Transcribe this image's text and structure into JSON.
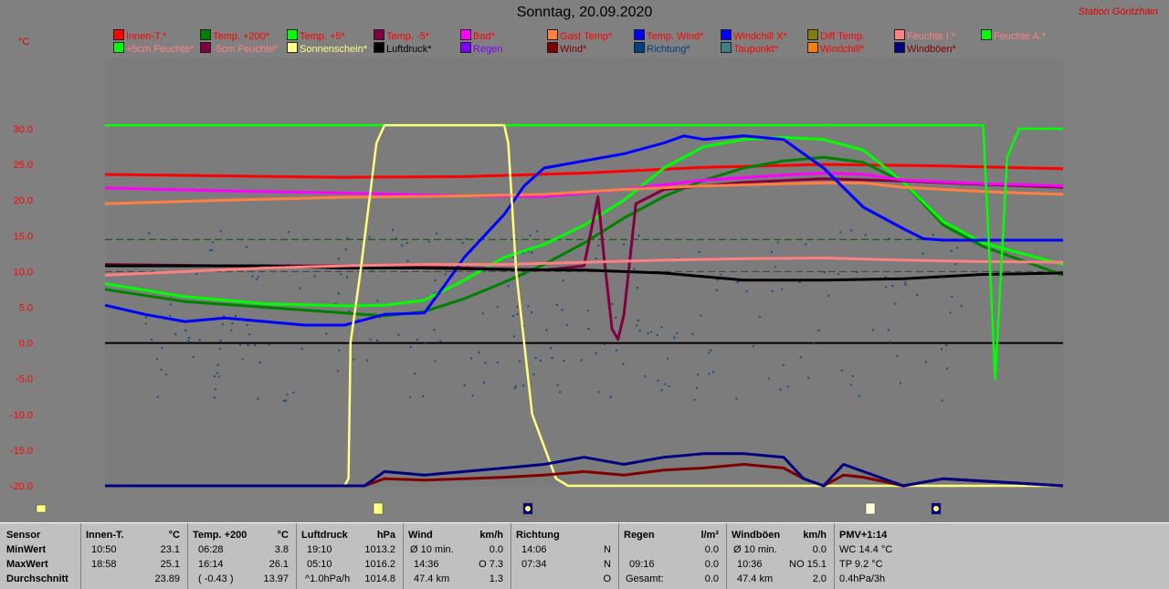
{
  "title": "Sonntag, 20.09.2020",
  "station": "Station Göritzhain",
  "unit": "°C",
  "legend": [
    {
      "label": "Innen-T.*",
      "color": "#ff0000",
      "text": "#ff0000"
    },
    {
      "label": "Temp. +200*",
      "color": "#008000",
      "text": "#ff0000"
    },
    {
      "label": "Temp. +5*",
      "color": "#00ff00",
      "text": "#ff0000"
    },
    {
      "label": "Temp. -5*",
      "color": "#800040",
      "text": "#ff0000"
    },
    {
      "label": "Bad*",
      "color": "#ff00ff",
      "text": "#ff0000"
    },
    {
      "label": "Gast Temp*",
      "color": "#ff8040",
      "text": "#ff0000"
    },
    {
      "label": "Temp. Wind*",
      "color": "#0000ff",
      "text": "#ff0000"
    },
    {
      "label": "Windchill X*",
      "color": "#0000ff",
      "text": "#ff0000"
    },
    {
      "label": "Diff Temp.",
      "color": "#808000",
      "text": "#ff0000"
    },
    {
      "label": "Feuchte I.*",
      "color": "#ff8080",
      "text": "#ff8080"
    },
    {
      "label": "Feuchte A.*",
      "color": "#00ff00",
      "text": "#ff8080"
    },
    {
      "label": "+5cm Feuchte*",
      "color": "#00ff00",
      "text": "#ff8080"
    },
    {
      "label": "-5cm Feuchte*",
      "color": "#800040",
      "text": "#ff8080"
    },
    {
      "label": "Sonnenschein*",
      "color": "#ffff80",
      "text": "#ffff80"
    },
    {
      "label": "Luftdruck*",
      "color": "#000000",
      "text": "#000000"
    },
    {
      "label": "Regen",
      "color": "#8000ff",
      "text": "#8000ff"
    },
    {
      "label": "Wind*",
      "color": "#800000",
      "text": "#800000"
    },
    {
      "label": "Richtung*",
      "color": "#004080",
      "text": "#004080"
    },
    {
      "label": "Taupunkt*",
      "color": "#408080",
      "text": "#ff0000"
    },
    {
      "label": "Windchill*",
      "color": "#ff8000",
      "text": "#ff0000"
    },
    {
      "label": "Windböen*",
      "color": "#000080",
      "text": "#800000"
    }
  ],
  "chart_data": {
    "type": "line",
    "title": "Sonntag, 20.09.2020",
    "ylabel": "°C",
    "xlim": [
      0,
      24
    ],
    "ylim": [
      -20,
      30
    ],
    "yticks": [
      "30.0",
      "25.0",
      "20.0",
      "15.0",
      "10.0",
      "5.0",
      "0.0",
      "-5.0",
      "-10.0",
      "-15.0",
      "-20.0"
    ],
    "reference_lines": [
      14.5,
      10.0,
      0.0
    ],
    "series": [
      {
        "name": "Innen-T.*",
        "color": "#ff0000",
        "x": [
          0,
          3,
          6,
          9,
          12,
          15,
          18,
          21,
          24
        ],
        "y": [
          23.6,
          23.4,
          23.2,
          23.3,
          23.8,
          24.6,
          25.0,
          24.8,
          24.4
        ]
      },
      {
        "name": "Temp. +200*",
        "color": "#008000",
        "x": [
          0,
          2,
          4,
          6,
          7,
          8,
          9,
          10,
          11,
          12,
          13,
          14,
          15,
          16,
          17,
          18,
          19,
          20,
          21,
          22,
          23,
          24
        ],
        "y": [
          7.5,
          5.8,
          5.0,
          4.2,
          3.8,
          4.4,
          6.2,
          8.5,
          11.0,
          14.0,
          17.5,
          20.5,
          22.8,
          24.5,
          25.5,
          26.0,
          25.3,
          22.5,
          16.5,
          13.5,
          11.5,
          9.5
        ]
      },
      {
        "name": "Temp. +5*",
        "color": "#00ff00",
        "x": [
          0,
          2,
          4,
          6,
          7,
          8,
          9,
          10,
          11,
          12,
          13,
          14,
          15,
          16,
          17,
          18,
          19,
          20,
          21,
          22,
          23,
          24
        ],
        "y": [
          8.3,
          6.5,
          5.5,
          5.2,
          5.3,
          6.0,
          8.8,
          12.0,
          13.8,
          16.5,
          20.0,
          24.5,
          27.5,
          28.5,
          28.8,
          28.5,
          27.0,
          22.5,
          17.0,
          14.0,
          12.5,
          11.0
        ]
      },
      {
        "name": "Temp. -5*",
        "color": "#800040",
        "x": [
          0,
          3,
          6,
          9,
          11,
          12,
          12.35,
          12.5,
          12.7,
          12.85,
          13,
          13.3,
          14,
          16,
          18,
          20,
          22,
          24
        ],
        "y": [
          11.0,
          10.8,
          10.8,
          10.5,
          10.2,
          10.8,
          20.5,
          12.0,
          2.0,
          0.5,
          4.0,
          19.5,
          21.5,
          22.5,
          23.0,
          22.7,
          22.2,
          21.8
        ]
      },
      {
        "name": "Bad*",
        "color": "#ff00ff",
        "x": [
          0,
          3,
          6,
          9,
          11,
          13,
          15,
          17,
          18,
          19,
          20,
          22,
          24
        ],
        "y": [
          21.7,
          21.3,
          21.0,
          20.6,
          20.5,
          21.5,
          22.8,
          23.5,
          23.8,
          23.6,
          22.8,
          22.3,
          22.0
        ]
      },
      {
        "name": "Gast Temp*",
        "color": "#ff8040",
        "x": [
          0,
          3,
          6,
          9,
          11,
          13,
          15,
          17,
          18,
          19,
          20,
          22,
          24
        ],
        "y": [
          19.5,
          20.0,
          20.4,
          20.6,
          20.8,
          21.5,
          22.0,
          22.3,
          22.4,
          22.4,
          21.8,
          21.2,
          20.8
        ]
      },
      {
        "name": "Temp. Wind*",
        "color": "#0000ff",
        "x": [
          0,
          1,
          2,
          3,
          4,
          5,
          6,
          7,
          8,
          8.5,
          9,
          10,
          10.5,
          11,
          11.5,
          12,
          13,
          14,
          14.5,
          15,
          16,
          17,
          18,
          19,
          20,
          20.5,
          21,
          22,
          23,
          24
        ],
        "y": [
          5.3,
          4.0,
          3.0,
          3.5,
          3.0,
          2.5,
          2.5,
          4.0,
          4.2,
          8.0,
          12.0,
          18.0,
          22.0,
          24.5,
          25.0,
          25.5,
          26.5,
          28.0,
          29.0,
          28.5,
          29.0,
          28.5,
          24.5,
          19.0,
          16.0,
          14.6,
          14.4,
          14.4,
          14.4,
          14.4
        ]
      },
      {
        "name": "Luftdruck*",
        "color": "#000000",
        "x": [
          0,
          2,
          4,
          6,
          8,
          10,
          12,
          14,
          16,
          18,
          20,
          22,
          24
        ],
        "y": [
          10.8,
          10.8,
          10.8,
          10.5,
          10.5,
          10.3,
          10.2,
          9.8,
          8.8,
          8.8,
          9.0,
          9.6,
          9.8
        ]
      },
      {
        "name": "Feuchte I.*",
        "color": "#ff8080",
        "x": [
          0,
          2,
          4,
          6,
          8,
          10,
          12,
          14,
          16,
          18,
          20,
          22,
          24
        ],
        "y": [
          9.5,
          10.0,
          10.5,
          10.8,
          11.0,
          11.0,
          11.3,
          11.6,
          11.8,
          11.9,
          11.6,
          11.4,
          11.3
        ]
      },
      {
        "name": "Feuchte A.*",
        "color": "#00ff00",
        "x": [
          0,
          15,
          20,
          21.8,
          22,
          22.3,
          22.6,
          22.9,
          24
        ],
        "y": [
          30.5,
          30.5,
          30.5,
          30.5,
          30.5,
          -5.0,
          26.0,
          30.0,
          30.0
        ]
      },
      {
        "name": "Sonnenschein*",
        "color": "#ffff80",
        "x": [
          0,
          6.0,
          6.1,
          6.15,
          6.4,
          6.8,
          7.0,
          10.0,
          10.1,
          10.3,
          10.7,
          11.3,
          11.6,
          24
        ],
        "y": [
          -20,
          -20,
          -19,
          0,
          10,
          28,
          30.5,
          30.5,
          28,
          10,
          -10,
          -19,
          -20,
          -20
        ]
      },
      {
        "name": "Wind*",
        "color": "#800000",
        "x": [
          0,
          6.5,
          7,
          8,
          9,
          10,
          11,
          12,
          13,
          14,
          15,
          16,
          17,
          17.5,
          18,
          18.5,
          19,
          20,
          21,
          24
        ],
        "y": [
          -20,
          -20,
          -19.0,
          -19.2,
          -19.0,
          -18.8,
          -18.5,
          -18.0,
          -18.5,
          -17.8,
          -17.5,
          -17.0,
          -17.5,
          -19.0,
          -20,
          -18.5,
          -18.8,
          -20,
          -19,
          -20
        ]
      },
      {
        "name": "Windböen*",
        "color": "#000080",
        "x": [
          0,
          6.5,
          7,
          8,
          9,
          10,
          11,
          12,
          13,
          14,
          15,
          16,
          17,
          17.5,
          18,
          18.5,
          19,
          20,
          21,
          24
        ],
        "y": [
          -20,
          -20,
          -18.0,
          -18.5,
          -18.0,
          -17.5,
          -17.0,
          -16.0,
          -17.0,
          -16.0,
          -15.5,
          -15.5,
          -16.0,
          -19.0,
          -20,
          -17.0,
          -18.0,
          -20,
          -19,
          -20
        ]
      }
    ]
  },
  "stats": {
    "col1": {
      "header": "Sensor",
      "rows": [
        "MinWert",
        "MaxWert",
        "Durchschnitt"
      ]
    },
    "col2": {
      "header": "Innen-T.",
      "unit": "°C",
      "rows": [
        [
          "10:50",
          "23.1"
        ],
        [
          "18:58",
          "25.1"
        ],
        [
          "",
          "23.89"
        ]
      ]
    },
    "col3": {
      "header": "Temp. +200",
      "unit": "°C",
      "rows": [
        [
          "06:28",
          "3.8"
        ],
        [
          "16:14",
          "26.1"
        ],
        [
          "( -0.43 )",
          "13.97"
        ]
      ]
    },
    "col4": {
      "header": "Luftdruck",
      "unit": "hPa",
      "rows": [
        [
          "19:10",
          "1013.2"
        ],
        [
          "05:10",
          "1016.2"
        ],
        [
          "^1.0hPa/h",
          "1014.8"
        ]
      ]
    },
    "col5": {
      "header": "Wind",
      "unit": "km/h",
      "rows": [
        [
          "Ø 10 min.",
          "0.0"
        ],
        [
          "14:36",
          "O 7.3"
        ],
        [
          "47.4 km",
          "1.3"
        ]
      ]
    },
    "col6": {
      "header": "Richtung",
      "unit": "",
      "rows": [
        [
          "14:06",
          "N"
        ],
        [
          "07:34",
          "N"
        ],
        [
          "",
          "O"
        ]
      ]
    },
    "col7": {
      "header": "Regen",
      "unit": "l/m²",
      "rows": [
        [
          "",
          "0.0"
        ],
        [
          "09:16",
          "0.0"
        ],
        [
          "Gesamt:",
          "0.0"
        ]
      ]
    },
    "col8": {
      "header": "Windböen",
      "unit": "km/h",
      "rows": [
        [
          "Ø 10 min.",
          "0.0"
        ],
        [
          "10:36",
          "NO 15.1"
        ],
        [
          "47.4 km",
          "2.0"
        ]
      ]
    },
    "col9": {
      "header": "PMV+1:14",
      "rows": [
        "WC 14.4 °C",
        "TP 9.2 °C",
        "0.4hPa/3h"
      ]
    }
  }
}
